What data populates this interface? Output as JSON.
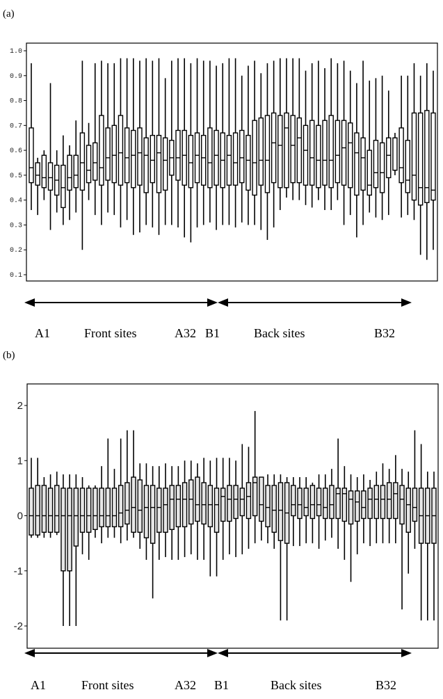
{
  "panels": {
    "a": {
      "label": "(a)"
    },
    "b": {
      "label": "(b)"
    }
  },
  "site_labels": {
    "a1": "A1",
    "front": "Front sites",
    "a32": "A32",
    "b1": "B1",
    "back": "Back sites",
    "b32": "B32"
  },
  "chart_data": [
    {
      "type": "box",
      "panel": "(a)",
      "title": "",
      "xlabel": "",
      "ylabel": "",
      "ylim": [
        0.1,
        1.0
      ],
      "yticks": [
        "0.1",
        "0.2",
        "0.3",
        "0.4",
        "0.5",
        "0.6",
        "0.7",
        "0.8",
        "0.9",
        "1.0"
      ],
      "groups": [
        "Front sites",
        "Back sites"
      ],
      "categories": [
        "A1",
        "A32",
        "B1",
        "B32"
      ],
      "box_count": 64,
      "boxes": [
        [
          0.36,
          0.47,
          0.53,
          0.69,
          0.95
        ],
        [
          0.34,
          0.46,
          0.5,
          0.55,
          0.57
        ],
        [
          0.4,
          0.45,
          0.49,
          0.58,
          0.6
        ],
        [
          0.28,
          0.44,
          0.49,
          0.55,
          0.87
        ],
        [
          0.35,
          0.42,
          0.48,
          0.54,
          0.6
        ],
        [
          0.3,
          0.37,
          0.45,
          0.54,
          0.66
        ],
        [
          0.32,
          0.44,
          0.49,
          0.58,
          0.62
        ],
        [
          0.35,
          0.45,
          0.5,
          0.58,
          0.72
        ],
        [
          0.2,
          0.44,
          0.55,
          0.67,
          0.96
        ],
        [
          0.4,
          0.47,
          0.52,
          0.62,
          0.71
        ],
        [
          0.34,
          0.48,
          0.55,
          0.63,
          0.95
        ],
        [
          0.3,
          0.46,
          0.53,
          0.74,
          0.96
        ],
        [
          0.35,
          0.48,
          0.57,
          0.69,
          0.95
        ],
        [
          0.34,
          0.47,
          0.58,
          0.7,
          0.95
        ],
        [
          0.29,
          0.46,
          0.59,
          0.74,
          0.97
        ],
        [
          0.32,
          0.47,
          0.57,
          0.69,
          0.97
        ],
        [
          0.26,
          0.45,
          0.58,
          0.68,
          0.97
        ],
        [
          0.27,
          0.46,
          0.59,
          0.69,
          0.96
        ],
        [
          0.3,
          0.43,
          0.58,
          0.65,
          0.97
        ],
        [
          0.29,
          0.47,
          0.56,
          0.66,
          0.96
        ],
        [
          0.26,
          0.43,
          0.59,
          0.66,
          0.97
        ],
        [
          0.3,
          0.44,
          0.56,
          0.65,
          0.89
        ],
        [
          0.3,
          0.5,
          0.57,
          0.64,
          0.96
        ],
        [
          0.29,
          0.48,
          0.57,
          0.68,
          0.97
        ],
        [
          0.25,
          0.46,
          0.58,
          0.68,
          0.97
        ],
        [
          0.23,
          0.45,
          0.55,
          0.66,
          0.95
        ],
        [
          0.29,
          0.47,
          0.58,
          0.67,
          0.97
        ],
        [
          0.3,
          0.46,
          0.57,
          0.66,
          0.96
        ],
        [
          0.31,
          0.45,
          0.55,
          0.69,
          0.96
        ],
        [
          0.28,
          0.46,
          0.58,
          0.68,
          0.94
        ],
        [
          0.3,
          0.45,
          0.56,
          0.67,
          0.95
        ],
        [
          0.3,
          0.46,
          0.58,
          0.66,
          0.97
        ],
        [
          0.29,
          0.46,
          0.55,
          0.67,
          0.97
        ],
        [
          0.31,
          0.47,
          0.57,
          0.68,
          0.9
        ],
        [
          0.3,
          0.44,
          0.56,
          0.66,
          0.94
        ],
        [
          0.3,
          0.42,
          0.55,
          0.72,
          0.96
        ],
        [
          0.28,
          0.46,
          0.56,
          0.73,
          0.91
        ],
        [
          0.24,
          0.43,
          0.56,
          0.74,
          0.95
        ],
        [
          0.29,
          0.47,
          0.63,
          0.75,
          0.96
        ],
        [
          0.36,
          0.45,
          0.62,
          0.74,
          0.97
        ],
        [
          0.41,
          0.45,
          0.69,
          0.75,
          0.97
        ],
        [
          0.4,
          0.47,
          0.62,
          0.74,
          0.97
        ],
        [
          0.4,
          0.47,
          0.65,
          0.73,
          0.97
        ],
        [
          0.38,
          0.46,
          0.6,
          0.7,
          0.92
        ],
        [
          0.37,
          0.46,
          0.57,
          0.72,
          0.95
        ],
        [
          0.4,
          0.45,
          0.56,
          0.7,
          0.96
        ],
        [
          0.36,
          0.46,
          0.56,
          0.72,
          0.93
        ],
        [
          0.36,
          0.45,
          0.56,
          0.74,
          0.97
        ],
        [
          0.4,
          0.47,
          0.58,
          0.72,
          0.95
        ],
        [
          0.3,
          0.46,
          0.61,
          0.72,
          0.96
        ],
        [
          0.34,
          0.45,
          0.63,
          0.71,
          0.92
        ],
        [
          0.25,
          0.42,
          0.59,
          0.67,
          0.87
        ],
        [
          0.3,
          0.44,
          0.57,
          0.65,
          0.96
        ],
        [
          0.35,
          0.42,
          0.46,
          0.6,
          0.88
        ],
        [
          0.33,
          0.45,
          0.51,
          0.64,
          0.89
        ],
        [
          0.32,
          0.43,
          0.51,
          0.63,
          0.9
        ],
        [
          0.34,
          0.49,
          0.58,
          0.65,
          0.84
        ],
        [
          0.5,
          0.52,
          0.52,
          0.65,
          0.67
        ],
        [
          0.33,
          0.47,
          0.53,
          0.69,
          0.9
        ],
        [
          0.34,
          0.43,
          0.48,
          0.64,
          0.9
        ],
        [
          0.32,
          0.4,
          0.5,
          0.75,
          0.95
        ],
        [
          0.18,
          0.38,
          0.45,
          0.75,
          0.9
        ],
        [
          0.16,
          0.39,
          0.45,
          0.76,
          0.95
        ],
        [
          0.2,
          0.4,
          0.44,
          0.75,
          0.92
        ]
      ]
    },
    {
      "type": "box",
      "panel": "(b)",
      "title": "",
      "xlabel": "",
      "ylabel": "",
      "ylim": [
        -2.2,
        2.2
      ],
      "yticks": [
        "-2",
        "-1",
        "0",
        "1",
        "2"
      ],
      "groups": [
        "Front sites",
        "Back sites"
      ],
      "categories": [
        "A1",
        "A32",
        "B1",
        "B32"
      ],
      "box_count": 64,
      "boxes": [
        [
          -0.4,
          -0.35,
          0.0,
          0.5,
          1.05
        ],
        [
          -0.4,
          -0.35,
          0.0,
          0.55,
          1.05
        ],
        [
          -0.4,
          -0.3,
          0.0,
          0.55,
          0.7
        ],
        [
          -0.4,
          -0.3,
          0.0,
          0.5,
          0.75
        ],
        [
          -0.35,
          -0.3,
          0.0,
          0.55,
          0.8
        ],
        [
          -2.0,
          -1.0,
          0.0,
          0.5,
          0.75
        ],
        [
          -2.0,
          -1.0,
          0.0,
          0.5,
          0.75
        ],
        [
          -2.0,
          -0.55,
          0.0,
          0.5,
          0.75
        ],
        [
          -0.7,
          -0.3,
          0.0,
          0.5,
          0.7
        ],
        [
          -0.8,
          -0.3,
          0.0,
          0.5,
          0.55
        ],
        [
          -0.4,
          -0.25,
          0.0,
          0.5,
          0.55
        ],
        [
          -0.5,
          -0.2,
          0.0,
          0.5,
          0.9
        ],
        [
          -0.4,
          -0.2,
          0.0,
          0.5,
          1.4
        ],
        [
          -0.4,
          -0.2,
          0.0,
          0.5,
          0.85
        ],
        [
          -0.5,
          -0.2,
          0.05,
          0.55,
          1.4
        ],
        [
          -0.45,
          -0.15,
          0.1,
          0.6,
          1.55
        ],
        [
          -0.4,
          -0.3,
          0.15,
          0.7,
          1.55
        ],
        [
          -0.6,
          -0.3,
          0.1,
          0.65,
          0.95
        ],
        [
          -0.8,
          -0.4,
          0.15,
          0.55,
          0.95
        ],
        [
          -1.5,
          -0.5,
          0.15,
          0.55,
          0.9
        ],
        [
          -0.8,
          -0.3,
          0.15,
          0.5,
          0.9
        ],
        [
          -0.75,
          -0.3,
          0.2,
          0.5,
          0.95
        ],
        [
          -0.8,
          -0.25,
          0.3,
          0.55,
          0.9
        ],
        [
          -0.8,
          -0.2,
          0.3,
          0.55,
          0.9
        ],
        [
          -0.75,
          -0.2,
          0.3,
          0.6,
          1.0
        ],
        [
          -0.7,
          -0.15,
          0.3,
          0.65,
          1.0
        ],
        [
          -0.8,
          -0.1,
          0.2,
          0.7,
          0.95
        ],
        [
          -0.8,
          -0.15,
          0.2,
          0.6,
          1.05
        ],
        [
          -1.1,
          -0.2,
          0.2,
          0.55,
          1.0
        ],
        [
          -1.1,
          -0.3,
          0.2,
          0.5,
          1.05
        ],
        [
          -0.8,
          -0.1,
          0.35,
          0.5,
          1.05
        ],
        [
          -0.7,
          -0.1,
          0.3,
          0.55,
          1.05
        ],
        [
          -0.75,
          -0.05,
          0.3,
          0.55,
          1.0
        ],
        [
          -0.7,
          0.0,
          0.3,
          0.5,
          1.3
        ],
        [
          -0.6,
          -0.05,
          0.35,
          0.6,
          1.25
        ],
        [
          -0.5,
          0.0,
          0.6,
          0.7,
          1.9
        ],
        [
          -0.45,
          -0.1,
          0.2,
          0.7,
          0.7
        ],
        [
          -0.5,
          -0.2,
          0.15,
          0.55,
          0.75
        ],
        [
          -0.6,
          -0.3,
          0.1,
          0.55,
          0.75
        ],
        [
          -1.9,
          -0.45,
          0.1,
          0.6,
          0.75
        ],
        [
          -1.9,
          -0.5,
          0.05,
          0.6,
          0.7
        ],
        [
          -0.55,
          0.0,
          0.2,
          0.55,
          0.7
        ],
        [
          -0.55,
          -0.05,
          0.2,
          0.5,
          0.7
        ],
        [
          -0.5,
          0.0,
          0.15,
          0.5,
          0.7
        ],
        [
          -0.5,
          -0.05,
          0.2,
          0.55,
          0.6
        ],
        [
          -0.6,
          0.0,
          0.2,
          0.5,
          0.75
        ],
        [
          -0.45,
          -0.05,
          0.15,
          0.5,
          0.75
        ],
        [
          -0.4,
          -0.05,
          0.2,
          0.55,
          0.85
        ],
        [
          -0.6,
          -0.05,
          0.4,
          0.5,
          1.4
        ],
        [
          -0.8,
          -0.1,
          0.4,
          0.5,
          0.9
        ],
        [
          -1.2,
          -0.15,
          0.3,
          0.45,
          0.75
        ],
        [
          -0.7,
          -0.1,
          0.25,
          0.45,
          0.7
        ],
        [
          -0.5,
          -0.05,
          0.15,
          0.45,
          0.75
        ],
        [
          -0.55,
          -0.05,
          0.3,
          0.5,
          0.65
        ],
        [
          -0.5,
          -0.05,
          0.3,
          0.55,
          0.8
        ],
        [
          -0.5,
          -0.05,
          0.3,
          0.55,
          0.95
        ],
        [
          -0.5,
          -0.05,
          0.3,
          0.6,
          0.85
        ],
        [
          -0.5,
          -0.05,
          0.4,
          0.6,
          1.1
        ],
        [
          -1.7,
          -0.15,
          0.3,
          0.55,
          0.85
        ],
        [
          -1.05,
          -0.3,
          0.2,
          0.5,
          0.8
        ],
        [
          -0.6,
          -0.1,
          0.15,
          0.5,
          1.55
        ],
        [
          -1.9,
          -0.5,
          0.0,
          0.5,
          1.3
        ],
        [
          -1.9,
          -0.5,
          0.0,
          0.5,
          0.8
        ],
        [
          -1.9,
          -0.5,
          0.0,
          0.5,
          0.8
        ]
      ]
    }
  ]
}
